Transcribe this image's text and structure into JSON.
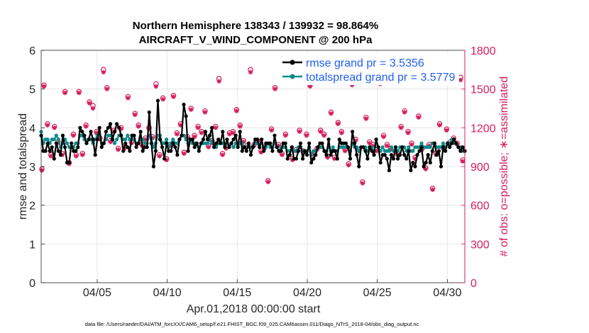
{
  "chart_data": {
    "type": "line",
    "title": "Northern Hemisphere 138343 / 139932 = 98.864%",
    "subtitle": "AIRCRAFT_V_WIND_COMPONENT @ 200 hPa",
    "xlabel": "Apr.01,2018 00:00:00 start",
    "ylabel": "rmse and totalspread",
    "ylabel_right": "# of obs: o=possible; ∗=assimilated",
    "footer": "data file: /Users/raeder/DAI/ATM_forcXX/CAM6_setup/f.e21.FHIST_BGC.f09_025.CAM6assim.011/Diags_NTrS_2018-04/obs_diag_output.nc",
    "xlim": [
      1.0,
      31.25
    ],
    "ylim": [
      0,
      6
    ],
    "ylim_right": [
      0,
      1800
    ],
    "x_ticks": [
      5,
      10,
      15,
      20,
      25,
      30
    ],
    "x_tick_labels": [
      "04/05",
      "04/10",
      "04/15",
      "04/20",
      "04/25",
      "04/30"
    ],
    "y_ticks": [
      "0",
      "1",
      "2",
      "3",
      "4",
      "5",
      "6"
    ],
    "y_ticks_right": [
      "0",
      "300",
      "600",
      "900",
      "1200",
      "1500",
      "1800"
    ],
    "grid": true,
    "legend": [
      "rmse grand pr = 3.5356",
      "totalspread grand pr = 3.5779"
    ],
    "colors": {
      "rmse": "#000000",
      "spread": "#0f8a8a",
      "obs": "#d61e5a"
    },
    "series": [
      {
        "name": "rmse grand pr = 3.5356",
        "axis": "left",
        "color": "#000000",
        "values": [
          3.8,
          3.4,
          3.4,
          3.6,
          3.4,
          3.5,
          3.2,
          3.6,
          3.4,
          3.3,
          3.8,
          3.5,
          3.1,
          3.1,
          3.6,
          3.4,
          3.4,
          3.5,
          4.0,
          3.9,
          3.8,
          3.6,
          3.7,
          3.9,
          3.7,
          3.3,
          3.7,
          4.0,
          3.5,
          3.6,
          3.9,
          4.0,
          4.1,
          3.7,
          3.9,
          4.1,
          4.0,
          3.8,
          3.4,
          3.6,
          3.5,
          3.4,
          3.8,
          3.8,
          3.5,
          3.6,
          3.9,
          3.4,
          3.5,
          3.5,
          4.4,
          3.6,
          3.0,
          3.4,
          4.7,
          3.7,
          3.5,
          3.2,
          3.6,
          3.4,
          3.4,
          3.6,
          3.5,
          3.3,
          3.7,
          3.8,
          4.6,
          4.3,
          3.4,
          3.7,
          3.7,
          3.5,
          3.6,
          3.4,
          3.6,
          3.7,
          3.9,
          3.7,
          3.8,
          4.0,
          3.5,
          3.6,
          3.7,
          3.6,
          3.9,
          3.5,
          3.7,
          3.5,
          3.6,
          3.7,
          3.8,
          3.5,
          3.9,
          3.4,
          3.5,
          3.4,
          3.6,
          3.3,
          3.5,
          3.7,
          3.7,
          3.5,
          3.7,
          3.4,
          3.6,
          3.6,
          3.6,
          3.4,
          3.8,
          3.5,
          3.4,
          3.4,
          3.6,
          3.6,
          3.2,
          3.3,
          3.5,
          3.2,
          3.2,
          3.4,
          3.6,
          3.2,
          3.4,
          3.3,
          3.6,
          3.1,
          3.2,
          3.3,
          3.5,
          3.6,
          3.6,
          3.4,
          3.3,
          3.7,
          3.3,
          3.4,
          3.4,
          3.2,
          3.7,
          3.6,
          3.6,
          3.6,
          3.5,
          3.2,
          3.9,
          3.6,
          3.3,
          3.0,
          3.5,
          3.5,
          3.4,
          3.2,
          3.5,
          3.4,
          3.3,
          3.7,
          3.5,
          3.1,
          3.3,
          3.3,
          3.2,
          2.9,
          3.3,
          3.2,
          3.5,
          3.2,
          3.3,
          3.5,
          3.3,
          3.2,
          3.4,
          2.9,
          3.1,
          3.0,
          3.3,
          3.4,
          3.5,
          3.0,
          3.1,
          3.3,
          3.1,
          3.4,
          3.6,
          3.3,
          3.4,
          3.0,
          3.5,
          3.4,
          3.6,
          3.5,
          3.6,
          3.7,
          3.6,
          3.5,
          3.4,
          3.5,
          3.4
        ]
      },
      {
        "name": "totalspread grand pr = 3.5779",
        "axis": "left",
        "color": "#0f8a8a",
        "values": [
          3.9,
          3.6,
          3.7,
          3.7,
          3.6,
          3.7,
          3.7,
          3.8,
          3.7,
          3.5,
          3.6,
          3.7,
          3.6,
          3.5,
          3.5,
          3.5,
          3.6,
          3.6,
          3.8,
          3.8,
          3.7,
          3.6,
          3.7,
          3.7,
          3.6,
          3.7,
          3.8,
          3.8,
          3.6,
          3.6,
          3.7,
          3.8,
          3.8,
          3.7,
          3.6,
          3.7,
          3.8,
          3.8,
          3.7,
          3.7,
          3.8,
          3.7,
          3.7,
          3.7,
          3.6,
          3.6,
          3.7,
          3.7,
          3.6,
          3.6,
          3.8,
          3.7,
          3.5,
          3.6,
          3.8,
          3.8,
          3.6,
          3.6,
          3.7,
          3.5,
          3.6,
          3.7,
          3.6,
          3.6,
          3.7,
          3.8,
          3.8,
          3.7,
          3.6,
          3.7,
          3.6,
          3.6,
          3.6,
          3.5,
          3.6,
          3.6,
          3.6,
          3.6,
          3.7,
          3.6,
          3.5,
          3.5,
          3.6,
          3.6,
          3.6,
          3.5,
          3.6,
          3.5,
          3.6,
          3.5,
          3.6,
          3.5,
          3.6,
          3.6,
          3.5,
          3.5,
          3.6,
          3.5,
          3.5,
          3.6,
          3.6,
          3.5,
          3.6,
          3.5,
          3.5,
          3.6,
          3.5,
          3.5,
          3.6,
          3.5,
          3.4,
          3.5,
          3.5,
          3.5,
          3.4,
          3.4,
          3.5,
          3.4,
          3.4,
          3.5,
          3.5,
          3.4,
          3.4,
          3.4,
          3.5,
          3.3,
          3.4,
          3.4,
          3.5,
          3.5,
          3.5,
          3.4,
          3.4,
          3.5,
          3.4,
          3.5,
          3.4,
          3.4,
          3.5,
          3.5,
          3.5,
          3.5,
          3.5,
          3.4,
          3.6,
          3.5,
          3.5,
          3.4,
          3.5,
          3.5,
          3.5,
          3.4,
          3.5,
          3.5,
          3.4,
          3.6,
          3.5,
          3.4,
          3.5,
          3.4,
          3.4,
          3.4,
          3.5,
          3.4,
          3.5,
          3.4,
          3.5,
          3.5,
          3.5,
          3.4,
          3.5,
          3.4,
          3.4,
          3.5,
          3.5,
          3.5,
          3.6,
          3.5,
          3.5,
          3.5,
          3.5,
          3.6,
          3.6,
          3.5,
          3.5,
          3.5,
          3.6,
          3.5,
          3.6,
          3.6,
          3.7,
          3.6,
          3.6,
          3.5,
          3.5,
          3.4,
          3.4
        ]
      }
    ],
    "obs_scatter": {
      "axis": "right",
      "x": [
        1.05,
        1.2,
        1.45,
        1.7,
        1.95,
        2.2,
        2.5,
        2.7,
        3.0,
        3.3,
        3.5,
        3.7,
        3.95,
        4.2,
        4.45,
        4.7,
        4.95,
        5.2,
        5.45,
        5.7,
        5.95,
        6.2,
        6.5,
        6.7,
        6.95,
        7.2,
        7.45,
        7.7,
        7.95,
        8.2,
        8.45,
        8.7,
        8.95,
        9.2,
        9.45,
        9.7,
        9.95,
        10.2,
        10.45,
        10.7,
        10.95,
        11.2,
        11.45,
        11.7,
        11.95,
        12.2,
        12.45,
        12.7,
        12.95,
        13.2,
        13.45,
        13.7,
        13.95,
        14.2,
        14.45,
        14.7,
        14.95,
        15.2,
        15.45,
        15.7,
        15.95,
        16.2,
        16.45,
        16.7,
        16.95,
        17.2,
        17.45,
        17.7,
        17.95,
        18.2,
        18.45,
        18.7,
        18.95,
        19.2,
        19.45,
        19.7,
        19.95,
        20.2,
        20.45,
        20.7,
        20.95,
        21.2,
        21.45,
        21.7,
        21.95,
        22.2,
        22.45,
        22.7,
        22.95,
        23.2,
        23.45,
        23.7,
        23.95,
        24.2,
        24.45,
        24.7,
        24.95,
        25.2,
        25.45,
        25.7,
        25.95,
        26.2,
        26.45,
        26.7,
        26.95,
        27.2,
        27.45,
        27.7,
        27.95,
        28.2,
        28.45,
        28.7,
        28.95,
        29.2,
        29.45,
        29.7,
        29.95,
        30.2,
        30.45,
        30.7,
        30.95,
        31.1
      ],
      "possible": [
        880,
        1530,
        1230,
        990,
        1210,
        1090,
        1000,
        1480,
        930,
        1150,
        990,
        1480,
        1000,
        1220,
        1400,
        1370,
        1170,
        1120,
        1650,
        1510,
        1100,
        1180,
        1040,
        1200,
        1050,
        1440,
        1090,
        1310,
        1220,
        1070,
        1120,
        1200,
        1130,
        1540,
        990,
        1430,
        960,
        1070,
        1450,
        1160,
        1230,
        1010,
        1130,
        1350,
        1140,
        1210,
        1170,
        1330,
        1060,
        1100,
        1210,
        1580,
        1000,
        1050,
        1160,
        1170,
        1340,
        1220,
        1100,
        1060,
        1650,
        1070,
        1100,
        1020,
        1050,
        790,
        1190,
        1510,
        1070,
        1000,
        1150,
        1680,
        960,
        1030,
        1180,
        1020,
        1150,
        1530,
        1000,
        1040,
        1180,
        1150,
        980,
        1320,
        970,
        1240,
        1170,
        1030,
        920,
        1550,
        1110,
        1030,
        780,
        1280,
        1090,
        1070,
        1030,
        1560,
        1140,
        1070,
        1040,
        1620,
        1000,
        1210,
        1330,
        1170,
        1080,
        970,
        1290,
        1040,
        890,
        1070,
        730,
        1000,
        1230,
        1050,
        1190,
        1090,
        1120,
        1080,
        1590,
        950,
        1210,
        840,
        0
      ],
      "assimilated": [
        870,
        1520,
        1220,
        980,
        1200,
        1080,
        990,
        1470,
        920,
        1140,
        980,
        1470,
        990,
        1210,
        1390,
        1350,
        1160,
        1110,
        1630,
        1500,
        1090,
        1170,
        1030,
        1190,
        1040,
        1430,
        1080,
        1300,
        1210,
        1060,
        1110,
        1190,
        1120,
        1520,
        980,
        1420,
        950,
        1060,
        1440,
        1150,
        1220,
        1000,
        1120,
        1340,
        1130,
        1200,
        1160,
        1320,
        1050,
        1090,
        1200,
        1560,
        990,
        1040,
        1150,
        1160,
        1330,
        1210,
        1090,
        1050,
        1630,
        1060,
        1090,
        1010,
        1040,
        780,
        1180,
        1500,
        1060,
        990,
        1140,
        1660,
        950,
        1020,
        1170,
        1010,
        1140,
        1520,
        990,
        1030,
        1170,
        1140,
        970,
        1310,
        960,
        1230,
        1160,
        1020,
        910,
        1530,
        1100,
        1020,
        770,
        1270,
        1080,
        1060,
        1020,
        1540,
        1130,
        1060,
        1030,
        1600,
        990,
        1200,
        1320,
        1160,
        1070,
        960,
        1280,
        1030,
        880,
        1060,
        720,
        990,
        1220,
        1040,
        1180,
        1080,
        1110,
        1070,
        1570,
        940,
        1200,
        830,
        0
      ]
    }
  }
}
